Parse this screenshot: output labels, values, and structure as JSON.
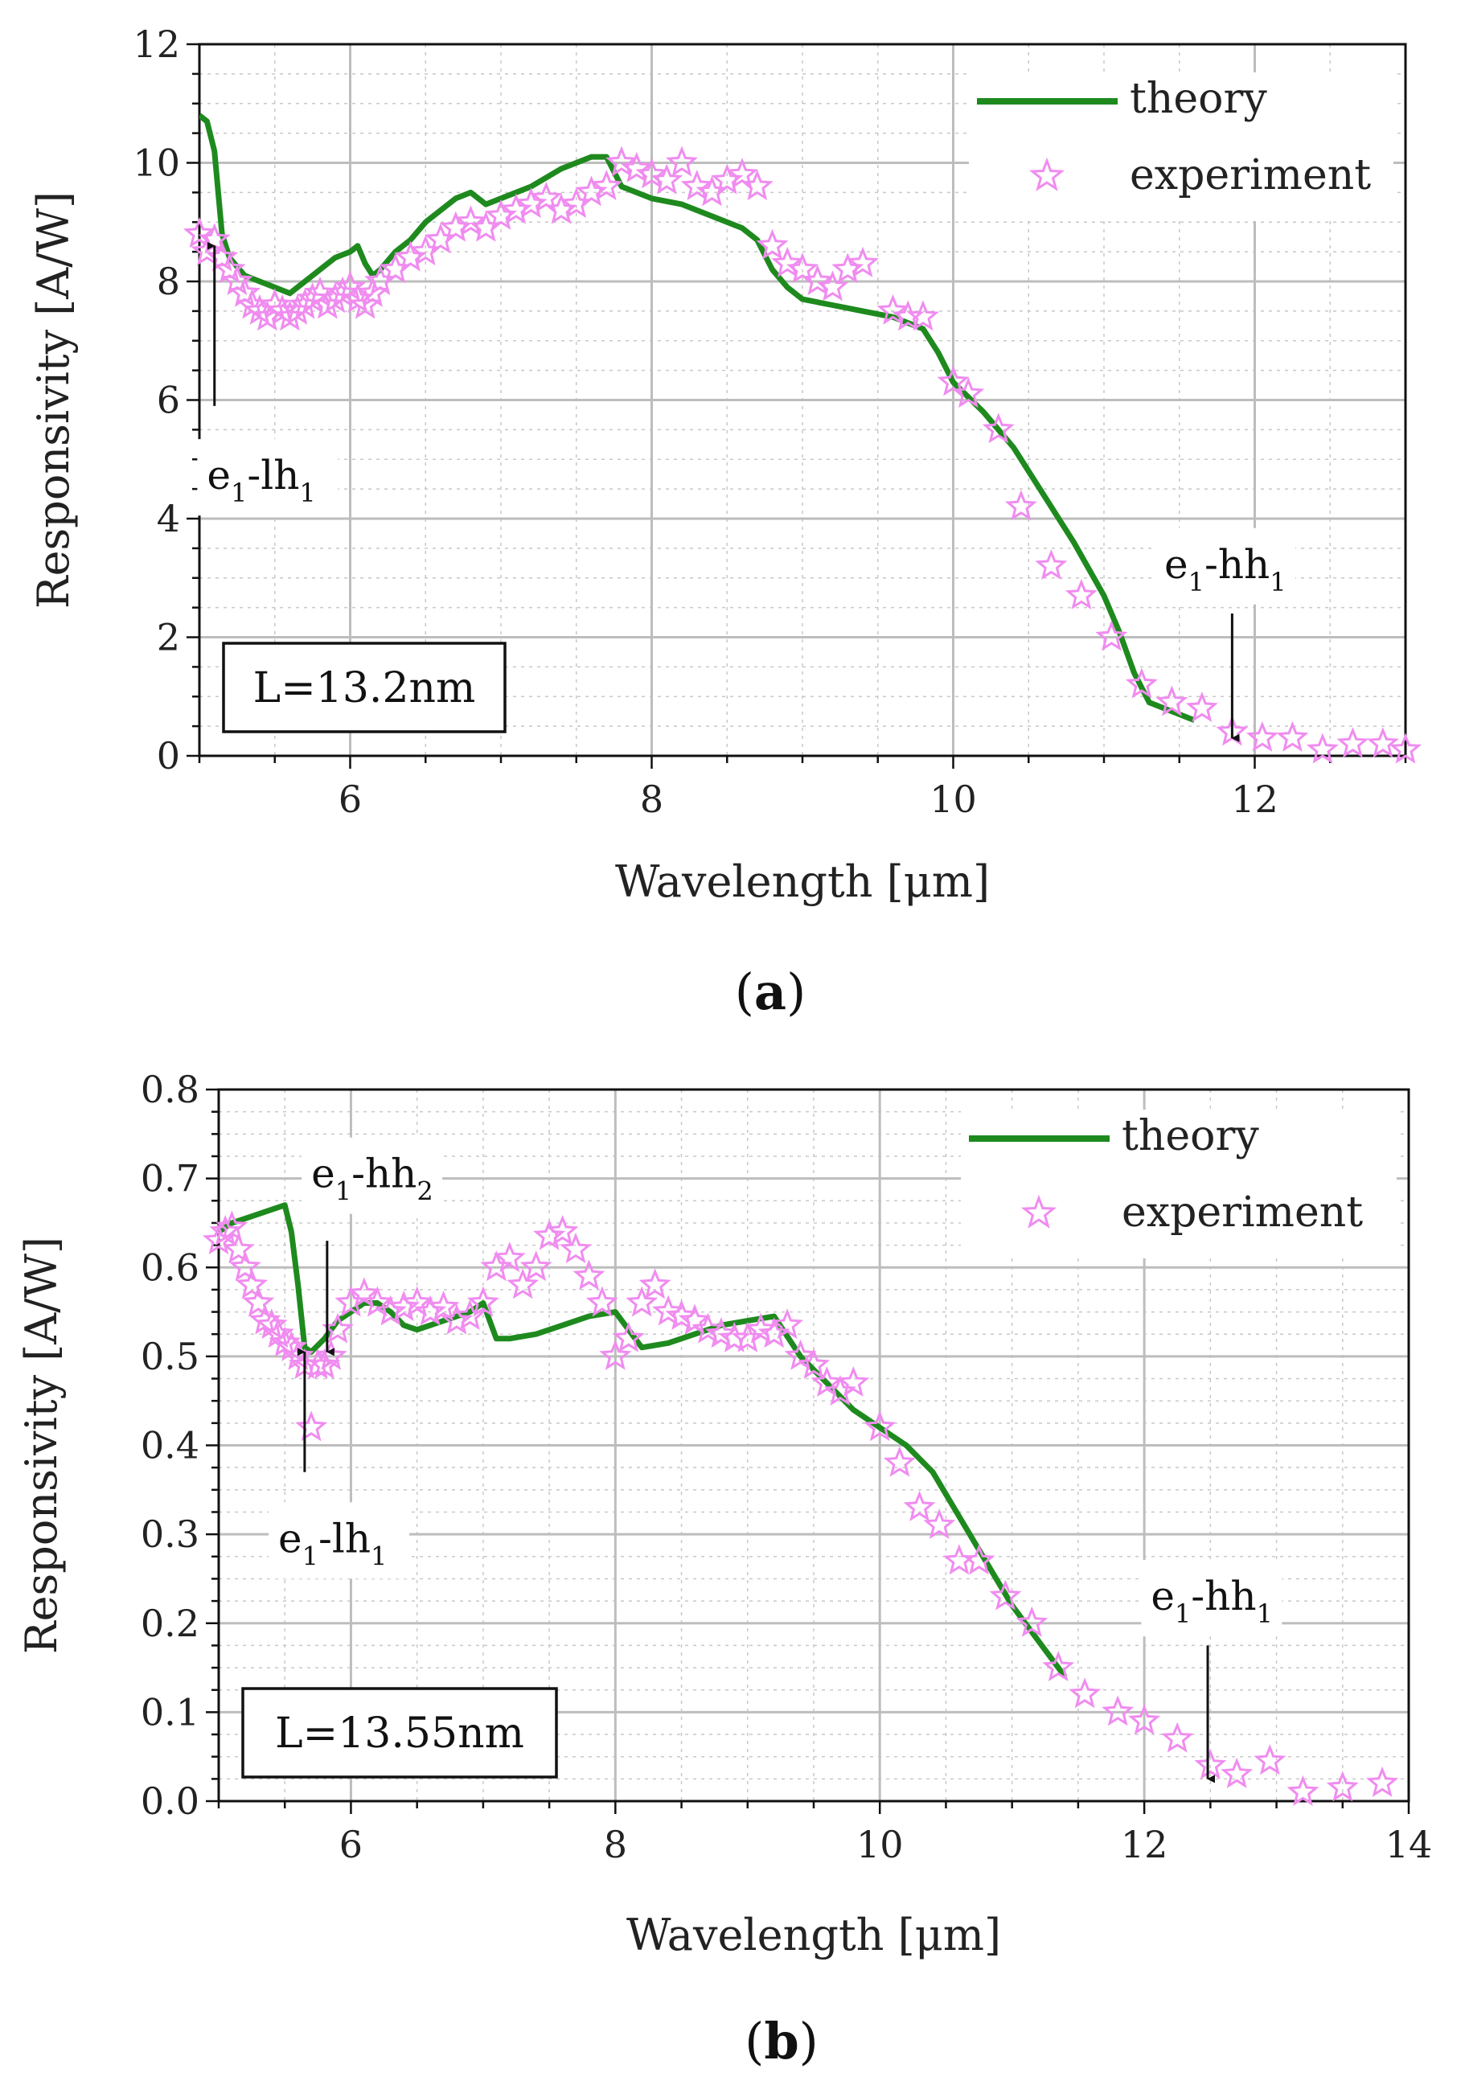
{
  "chart_data": [
    {
      "panel": "(a)",
      "panel_letter": "a",
      "type": "line",
      "xlabel": "Wavelength [μm]",
      "ylabel": "Responsivity [A/W]",
      "xlim": [
        5,
        13
      ],
      "ylim": [
        0,
        12
      ],
      "xticks": [
        6,
        8,
        10,
        12
      ],
      "yticks": [
        0,
        2,
        4,
        6,
        8,
        10,
        12
      ],
      "grid": true,
      "legend_position": "top-right",
      "box_label": "L=13.2nm",
      "series": [
        {
          "name": "theory",
          "style": "line",
          "color": "#1e8a1e",
          "x": [
            5.0,
            5.05,
            5.1,
            5.15,
            5.2,
            5.3,
            5.4,
            5.5,
            5.6,
            5.7,
            5.8,
            5.9,
            6.0,
            6.05,
            6.1,
            6.15,
            6.2,
            6.3,
            6.4,
            6.5,
            6.6,
            6.7,
            6.8,
            6.9,
            7.0,
            7.2,
            7.4,
            7.5,
            7.6,
            7.7,
            7.8,
            8.0,
            8.2,
            8.4,
            8.6,
            8.7,
            8.8,
            8.9,
            9.0,
            9.2,
            9.4,
            9.6,
            9.8,
            9.9,
            10.0,
            10.2,
            10.4,
            10.6,
            10.8,
            11.0,
            11.1,
            11.2,
            11.3,
            11.5,
            11.6
          ],
          "y": [
            10.8,
            10.7,
            10.2,
            8.8,
            8.4,
            8.1,
            8.0,
            7.9,
            7.8,
            8.0,
            8.2,
            8.4,
            8.5,
            8.6,
            8.3,
            8.1,
            8.2,
            8.5,
            8.7,
            9.0,
            9.2,
            9.4,
            9.5,
            9.3,
            9.4,
            9.6,
            9.9,
            10.0,
            10.1,
            10.1,
            9.6,
            9.4,
            9.3,
            9.1,
            8.9,
            8.7,
            8.2,
            7.9,
            7.7,
            7.6,
            7.5,
            7.4,
            7.2,
            6.8,
            6.3,
            5.8,
            5.2,
            4.4,
            3.6,
            2.7,
            2.1,
            1.4,
            0.9,
            0.7,
            0.6
          ]
        },
        {
          "name": "experiment",
          "style": "star",
          "color": "#f08cf0",
          "x": [
            5.0,
            5.05,
            5.1,
            5.15,
            5.2,
            5.25,
            5.3,
            5.35,
            5.4,
            5.45,
            5.5,
            5.55,
            5.6,
            5.65,
            5.7,
            5.75,
            5.8,
            5.85,
            5.9,
            5.95,
            6.0,
            6.05,
            6.1,
            6.15,
            6.2,
            6.3,
            6.4,
            6.5,
            6.6,
            6.7,
            6.8,
            6.9,
            7.0,
            7.1,
            7.2,
            7.3,
            7.4,
            7.5,
            7.6,
            7.7,
            7.8,
            7.9,
            8.0,
            8.1,
            8.2,
            8.3,
            8.4,
            8.5,
            8.6,
            8.7,
            8.8,
            8.9,
            9.0,
            9.1,
            9.2,
            9.3,
            9.4,
            9.6,
            9.7,
            9.8,
            10.0,
            10.1,
            10.3,
            10.45,
            10.65,
            10.85,
            11.05,
            11.25,
            11.45,
            11.65,
            11.85,
            12.05,
            12.25,
            12.45,
            12.65,
            12.85,
            13.0
          ],
          "y": [
            8.8,
            8.5,
            8.7,
            8.4,
            8.2,
            8.0,
            7.8,
            7.6,
            7.5,
            7.4,
            7.6,
            7.5,
            7.4,
            7.5,
            7.6,
            7.7,
            7.8,
            7.6,
            7.7,
            7.8,
            7.9,
            7.7,
            7.6,
            7.8,
            8.0,
            8.2,
            8.4,
            8.5,
            8.7,
            8.9,
            9.0,
            8.9,
            9.1,
            9.2,
            9.3,
            9.4,
            9.2,
            9.3,
            9.5,
            9.6,
            10.0,
            9.9,
            9.8,
            9.7,
            10.0,
            9.6,
            9.5,
            9.7,
            9.8,
            9.6,
            8.6,
            8.3,
            8.2,
            8.0,
            7.9,
            8.2,
            8.3,
            7.5,
            7.4,
            7.4,
            6.3,
            6.1,
            5.5,
            4.2,
            3.2,
            2.7,
            2.0,
            1.2,
            0.9,
            0.8,
            0.4,
            0.3,
            0.3,
            0.1,
            0.2,
            0.2,
            0.1
          ]
        }
      ],
      "annotations": [
        {
          "main": "e",
          "sub1": "1",
          "mid": "-lh",
          "sub2": "1",
          "x": 5.1,
          "y_tip": 8.6,
          "y_tail": 5.9,
          "direction": "up",
          "label_x": 5.05,
          "label_y": 4.5
        },
        {
          "main": "e",
          "sub1": "1",
          "mid": "-hh",
          "sub2": "1",
          "x": 11.85,
          "y_tip": 0.3,
          "y_tail": 2.4,
          "direction": "down",
          "label_x": 11.4,
          "label_y": 3.0
        }
      ]
    },
    {
      "panel": "(b)",
      "panel_letter": "b",
      "type": "line",
      "xlabel": "Wavelength [μm]",
      "ylabel": "Responsivity [A/W]",
      "xlim": [
        5,
        14
      ],
      "ylim": [
        0,
        0.8
      ],
      "xticks": [
        6,
        8,
        10,
        12,
        14
      ],
      "yticks": [
        0.0,
        0.1,
        0.2,
        0.3,
        0.4,
        0.5,
        0.6,
        0.7,
        0.8
      ],
      "grid": true,
      "legend_position": "top-right",
      "box_label": "L=13.55nm",
      "series": [
        {
          "name": "theory",
          "style": "line",
          "color": "#1e8a1e",
          "x": [
            5.0,
            5.1,
            5.2,
            5.3,
            5.4,
            5.5,
            5.55,
            5.6,
            5.65,
            5.7,
            5.8,
            5.9,
            6.0,
            6.1,
            6.2,
            6.3,
            6.4,
            6.5,
            6.6,
            6.7,
            6.8,
            6.9,
            7.0,
            7.1,
            7.2,
            7.4,
            7.6,
            7.8,
            8.0,
            8.2,
            8.4,
            8.6,
            8.8,
            9.0,
            9.2,
            9.4,
            9.6,
            9.8,
            10.0,
            10.2,
            10.4,
            10.6,
            10.8,
            11.0,
            11.2,
            11.4
          ],
          "y": [
            0.64,
            0.65,
            0.655,
            0.66,
            0.665,
            0.67,
            0.64,
            0.58,
            0.51,
            0.505,
            0.52,
            0.54,
            0.55,
            0.56,
            0.56,
            0.55,
            0.535,
            0.53,
            0.535,
            0.54,
            0.545,
            0.55,
            0.56,
            0.52,
            0.52,
            0.525,
            0.535,
            0.545,
            0.55,
            0.51,
            0.515,
            0.525,
            0.535,
            0.54,
            0.545,
            0.5,
            0.47,
            0.44,
            0.42,
            0.4,
            0.37,
            0.32,
            0.27,
            0.22,
            0.18,
            0.14
          ]
        },
        {
          "name": "experiment",
          "style": "star",
          "color": "#f08cf0",
          "x": [
            5.0,
            5.05,
            5.1,
            5.15,
            5.2,
            5.25,
            5.3,
            5.35,
            5.4,
            5.45,
            5.5,
            5.55,
            5.6,
            5.65,
            5.7,
            5.75,
            5.8,
            5.85,
            5.9,
            6.0,
            6.1,
            6.2,
            6.3,
            6.4,
            6.5,
            6.6,
            6.7,
            6.8,
            6.9,
            7.0,
            7.1,
            7.2,
            7.3,
            7.4,
            7.5,
            7.6,
            7.7,
            7.8,
            7.9,
            8.0,
            8.1,
            8.2,
            8.3,
            8.4,
            8.5,
            8.6,
            8.7,
            8.8,
            8.9,
            9.0,
            9.1,
            9.2,
            9.3,
            9.4,
            9.5,
            9.6,
            9.7,
            9.8,
            10.0,
            10.15,
            10.3,
            10.45,
            10.6,
            10.75,
            10.95,
            11.15,
            11.35,
            11.55,
            11.8,
            12.0,
            12.25,
            12.5,
            12.7,
            12.95,
            13.2,
            13.5,
            13.8
          ],
          "y": [
            0.63,
            0.64,
            0.645,
            0.62,
            0.6,
            0.58,
            0.56,
            0.54,
            0.535,
            0.525,
            0.515,
            0.51,
            0.5,
            0.49,
            0.42,
            0.49,
            0.49,
            0.5,
            0.53,
            0.56,
            0.57,
            0.56,
            0.55,
            0.555,
            0.56,
            0.55,
            0.555,
            0.54,
            0.545,
            0.56,
            0.6,
            0.61,
            0.58,
            0.6,
            0.635,
            0.64,
            0.62,
            0.59,
            0.56,
            0.5,
            0.52,
            0.56,
            0.58,
            0.55,
            0.545,
            0.54,
            0.53,
            0.525,
            0.52,
            0.52,
            0.53,
            0.525,
            0.535,
            0.5,
            0.49,
            0.47,
            0.46,
            0.47,
            0.42,
            0.38,
            0.33,
            0.31,
            0.27,
            0.27,
            0.23,
            0.2,
            0.15,
            0.12,
            0.1,
            0.09,
            0.07,
            0.04,
            0.03,
            0.045,
            0.01,
            0.015,
            0.02
          ]
        }
      ],
      "annotations": [
        {
          "main": "e",
          "sub1": "1",
          "mid": "-hh",
          "sub2": "2",
          "x": 5.82,
          "y_tip": 0.505,
          "y_tail": 0.63,
          "direction": "down",
          "label_x": 5.7,
          "label_y": 0.69
        },
        {
          "main": "e",
          "sub1": "1",
          "mid": "-lh",
          "sub2": "1",
          "x": 5.65,
          "y_tip": 0.505,
          "y_tail": 0.37,
          "direction": "up",
          "label_x": 5.45,
          "label_y": 0.28
        },
        {
          "main": "e",
          "sub1": "1",
          "mid": "-hh",
          "sub2": "1",
          "x": 12.48,
          "y_tip": 0.025,
          "y_tail": 0.175,
          "direction": "down",
          "label_x": 12.05,
          "label_y": 0.215
        }
      ]
    }
  ]
}
